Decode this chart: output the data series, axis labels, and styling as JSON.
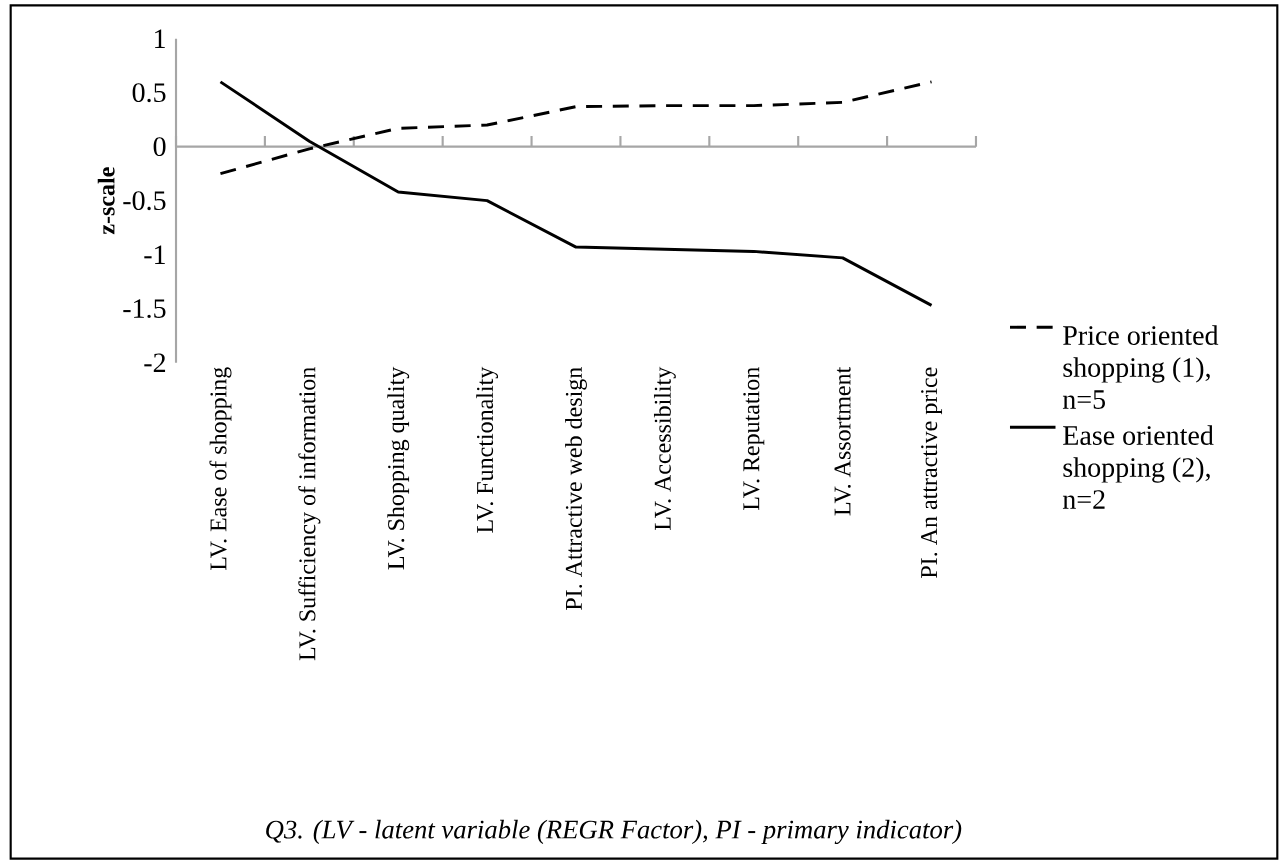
{
  "chart_data": {
    "type": "line",
    "ylabel": "z-scale",
    "categories": [
      "LV. Ease of shopping",
      "LV. Sufficiency of information",
      "LV. Shopping quality",
      "LV. Functionality",
      "PI. Attractive web design",
      "LV. Accessibility",
      "LV. Reputation",
      "LV. Assortment",
      "PI. An attractive price"
    ],
    "series": [
      {
        "name": "Price oriented shopping (1), n=5",
        "color": "#000000",
        "line_style": "dashed",
        "values": [
          -0.25,
          -0.02,
          0.17,
          0.2,
          0.37,
          0.38,
          0.38,
          0.41,
          0.6
        ]
      },
      {
        "name": "Ease oriented shopping (2), n=2",
        "color": "#000000",
        "line_style": "solid",
        "values": [
          0.6,
          0.05,
          -0.42,
          -0.5,
          -0.93,
          -0.95,
          -0.97,
          -1.03,
          -1.47
        ]
      }
    ],
    "ylim": [
      -2,
      1
    ],
    "yticks": [
      -2,
      -1.5,
      -1,
      -0.5,
      0,
      0.5,
      1
    ],
    "legend": "right",
    "marker": "none",
    "annotations": [
      "Q3. (LV - latent variable (REGR Factor), PI - primary indicator)"
    ]
  }
}
